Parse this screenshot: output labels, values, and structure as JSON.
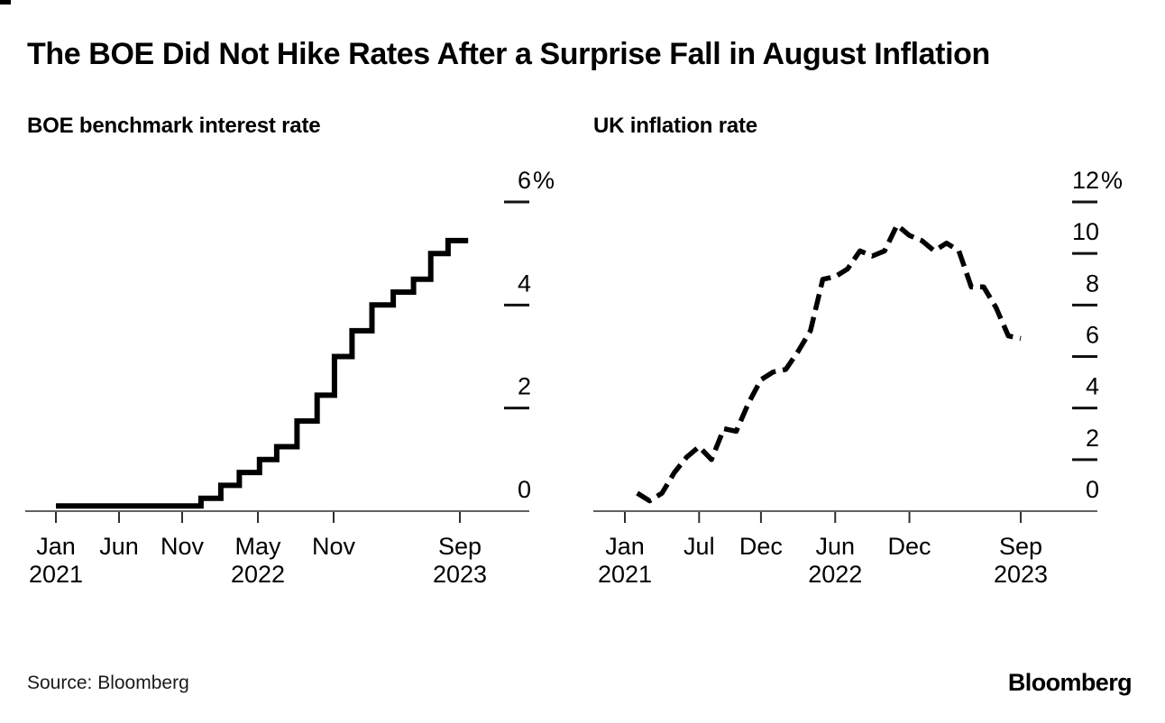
{
  "page": {
    "title": "The BOE Did Not Hike Rates After a Surprise Fall in August Inflation",
    "source": "Source: Bloomberg",
    "brand": "Bloomberg"
  },
  "chart_data": [
    {
      "type": "line",
      "subtype": "step",
      "title": "BOE benchmark interest rate",
      "unit": "%",
      "line_style": "solid",
      "line_color": "#000000",
      "grid": "off",
      "legend": "none",
      "x_start": "2021-01",
      "x_end": "2023-09",
      "ylim": [
        0,
        6
      ],
      "events": [
        {
          "date": "2021-01-01",
          "rate": 0.1
        },
        {
          "date": "2021-12-16",
          "rate": 0.25
        },
        {
          "date": "2022-02-03",
          "rate": 0.5
        },
        {
          "date": "2022-03-17",
          "rate": 0.75
        },
        {
          "date": "2022-05-05",
          "rate": 1.0
        },
        {
          "date": "2022-06-16",
          "rate": 1.25
        },
        {
          "date": "2022-08-04",
          "rate": 1.75
        },
        {
          "date": "2022-09-22",
          "rate": 2.25
        },
        {
          "date": "2022-11-03",
          "rate": 3.0
        },
        {
          "date": "2022-12-15",
          "rate": 3.5
        },
        {
          "date": "2023-02-02",
          "rate": 4.0
        },
        {
          "date": "2023-03-23",
          "rate": 4.25
        },
        {
          "date": "2023-05-11",
          "rate": 4.5
        },
        {
          "date": "2023-06-22",
          "rate": 5.0
        },
        {
          "date": "2023-08-03",
          "rate": 5.25
        }
      ],
      "end_date": "2023-09-21",
      "y_ticks": [
        {
          "label": "6%",
          "value": 6
        },
        {
          "label": "4",
          "value": 4
        },
        {
          "label": "2",
          "value": 2
        },
        {
          "label": "0",
          "value": 0
        }
      ],
      "x_ticks": [
        {
          "month": "Jan",
          "year": "2021",
          "m": 0
        },
        {
          "month": "Jun",
          "m": 5
        },
        {
          "month": "Nov",
          "m": 10
        },
        {
          "month": "May",
          "year": "2022",
          "m": 16
        },
        {
          "month": "Nov",
          "m": 22
        },
        {
          "month": "Sep",
          "year": "2023",
          "m": 32
        }
      ]
    },
    {
      "type": "line",
      "subtype": "dashed",
      "title": "UK inflation rate",
      "unit": "%",
      "line_style": "dashed",
      "line_color": "#000000",
      "grid": "off",
      "legend": "none",
      "frequency": "monthly",
      "start_month": "2021-01",
      "x_start": "2021-01",
      "x_end": "2023-09",
      "ylim": [
        0,
        12
      ],
      "values": [
        0.7,
        0.4,
        0.7,
        1.5,
        2.1,
        2.5,
        2.0,
        3.2,
        3.1,
        4.2,
        5.1,
        5.4,
        5.5,
        6.2,
        7.0,
        9.0,
        9.1,
        9.4,
        10.1,
        9.9,
        10.1,
        11.1,
        10.7,
        10.5,
        10.1,
        10.4,
        10.1,
        8.7,
        8.7,
        7.9,
        6.8,
        6.7
      ],
      "y_ticks": [
        {
          "label": "12%",
          "value": 12
        },
        {
          "label": "10",
          "value": 10
        },
        {
          "label": "8",
          "value": 8
        },
        {
          "label": "6",
          "value": 6
        },
        {
          "label": "4",
          "value": 4
        },
        {
          "label": "2",
          "value": 2
        },
        {
          "label": "0",
          "value": 0
        }
      ],
      "x_ticks": [
        {
          "month": "Jan",
          "year": "2021",
          "m": 0
        },
        {
          "month": "Jul",
          "m": 6
        },
        {
          "month": "Dec",
          "m": 11
        },
        {
          "month": "Jun",
          "year": "2022",
          "m": 17
        },
        {
          "month": "Dec",
          "m": 23
        },
        {
          "month": "Sep",
          "year": "2023",
          "m": 32
        }
      ]
    }
  ]
}
